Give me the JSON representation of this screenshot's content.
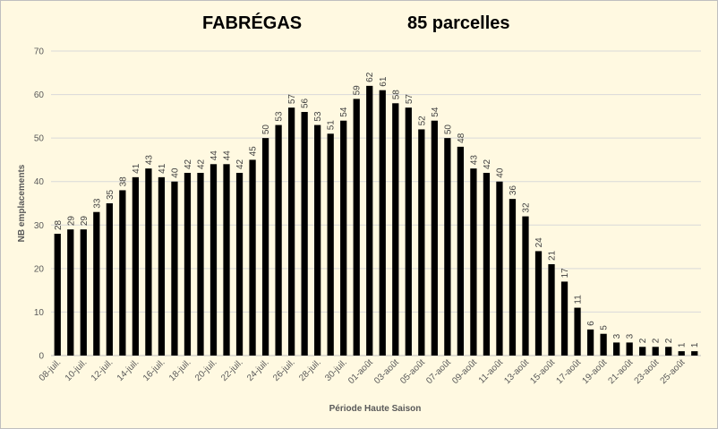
{
  "chart_data": {
    "type": "bar",
    "title": "FABRÉGAS",
    "subtitle": "85 parcelles",
    "xlabel": "Période Haute Saison",
    "ylabel": "NB emplacements",
    "ylim": [
      0,
      70
    ],
    "yticks": [
      0,
      10,
      20,
      30,
      40,
      50,
      60,
      70
    ],
    "grid": true,
    "legend": "none",
    "bar_color": "#000000",
    "categories": [
      "08-juil.",
      "09-juil.",
      "10-juil.",
      "11-juil.",
      "12-juil.",
      "13-juil.",
      "14-juil.",
      "15-juil.",
      "16-juil.",
      "17-juil.",
      "18-juil.",
      "19-juil.",
      "20-juil.",
      "21-juil.",
      "22-juil.",
      "23-juil.",
      "24-juil.",
      "25-juil.",
      "26-juil.",
      "27-juil.",
      "28-juil.",
      "29-juil.",
      "30-juil.",
      "31-juil.",
      "01-août",
      "02-août",
      "03-août",
      "04-août",
      "05-août",
      "06-août",
      "07-août",
      "08-août",
      "09-août",
      "10-août",
      "11-août",
      "12-août",
      "13-août",
      "14-août",
      "15-août",
      "16-août",
      "17-août",
      "18-août",
      "19-août",
      "20-août",
      "21-août",
      "22-août",
      "23-août",
      "24-août",
      "25-août",
      "26-août"
    ],
    "values": [
      28,
      29,
      29,
      33,
      35,
      38,
      41,
      43,
      41,
      40,
      42,
      42,
      44,
      44,
      42,
      45,
      50,
      53,
      57,
      56,
      53,
      51,
      54,
      59,
      62,
      61,
      58,
      57,
      52,
      54,
      50,
      48,
      43,
      42,
      40,
      36,
      32,
      24,
      21,
      17,
      11,
      6,
      5,
      3,
      3,
      2,
      2,
      2,
      1,
      1
    ]
  }
}
